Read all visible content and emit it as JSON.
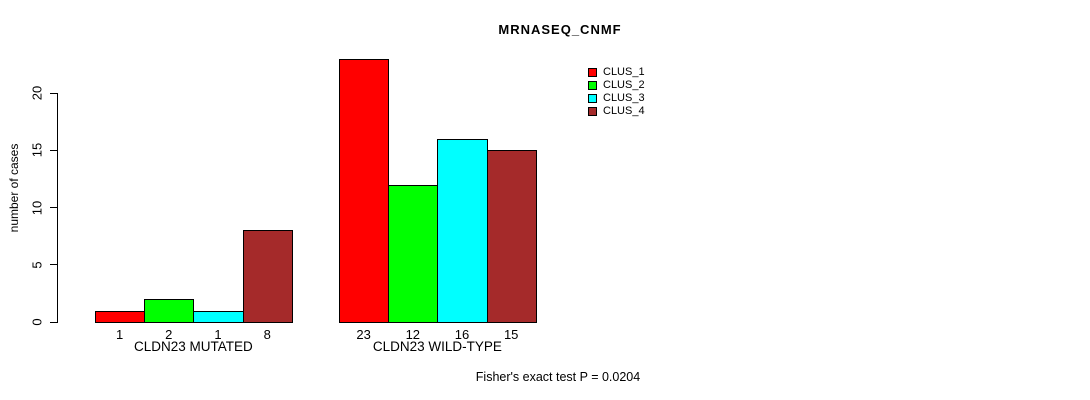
{
  "chart_data": {
    "type": "bar",
    "title": "MRNASEQ_CNMF",
    "xlabel": "",
    "ylabel": "number of cases",
    "categories": [
      "CLDN23 MUTATED",
      "CLDN23 WILD-TYPE"
    ],
    "series": [
      {
        "name": "CLUS_1",
        "color": "#FF0000",
        "values": [
          1,
          23
        ]
      },
      {
        "name": "CLUS_2",
        "color": "#00FF00",
        "values": [
          2,
          12
        ]
      },
      {
        "name": "CLUS_3",
        "color": "#00FFFF",
        "values": [
          1,
          16
        ]
      },
      {
        "name": "CLUS_4",
        "color": "#A52A2A",
        "values": [
          8,
          15
        ]
      }
    ],
    "yticks": [
      0,
      5,
      10,
      15,
      20
    ],
    "ylim": [
      0,
      23.4
    ],
    "grid": false,
    "bar_value_labels": true,
    "legend_position": "top-right",
    "annotation": "Fisher's exact test P = 0.0204"
  },
  "colors": {
    "background": "#FFFFFF",
    "axis": "#000000",
    "text": "#000000"
  }
}
